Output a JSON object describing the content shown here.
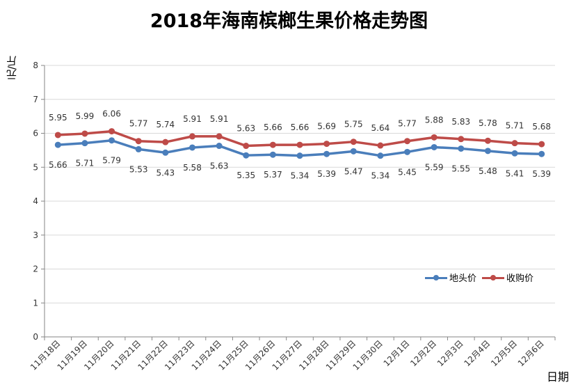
{
  "chart_data": {
    "type": "line",
    "title": "2018年海南槟榔生果价格走势图",
    "xlabel": "日期",
    "ylabel": "元/斤",
    "ylim": [
      0,
      8
    ],
    "yticks": [
      "0",
      "1",
      "2",
      "3",
      "4",
      "5",
      "6",
      "7",
      "8"
    ],
    "grid": true,
    "legend_position": "right",
    "categories": [
      "11月18日",
      "11月19日",
      "11月20日",
      "11月21日",
      "11月22日",
      "11月23日",
      "11月24日",
      "11月25日",
      "11月26日",
      "11月27日",
      "11月28日",
      "11月29日",
      "11月30日",
      "12月1日",
      "12月2日",
      "12月3日",
      "12月4日",
      "12月5日",
      "12月6日"
    ],
    "series": [
      {
        "name": "地头价",
        "color": "#4a7ebb",
        "values": [
          5.66,
          5.71,
          5.79,
          5.53,
          5.43,
          5.58,
          5.63,
          5.35,
          5.37,
          5.34,
          5.39,
          5.47,
          5.34,
          5.45,
          5.59,
          5.55,
          5.48,
          5.41,
          5.39
        ],
        "labels": [
          "5.66",
          "5.71",
          "5.79",
          "5.53",
          "5.43",
          "5.58",
          "5.63",
          "5.35",
          "5.37",
          "5.34",
          "5.39",
          "5.47",
          "5.34",
          "5.45",
          "5.59",
          "5.55",
          "5.48",
          "5.41",
          "5.39"
        ]
      },
      {
        "name": "收购价",
        "color": "#be4b48",
        "values": [
          5.95,
          5.99,
          6.06,
          5.77,
          5.74,
          5.91,
          5.91,
          5.63,
          5.66,
          5.66,
          5.69,
          5.75,
          5.64,
          5.77,
          5.88,
          5.83,
          5.78,
          5.71,
          5.68
        ],
        "labels": [
          "5.95",
          "5.99",
          "6.06",
          "5.77",
          "5.74",
          "5.91",
          "5.91",
          "5.63",
          "5.66",
          "5.66",
          "5.69",
          "5.75",
          "5.64",
          "5.77",
          "5.88",
          "5.83",
          "5.78",
          "5.71",
          "5.68"
        ]
      }
    ]
  }
}
